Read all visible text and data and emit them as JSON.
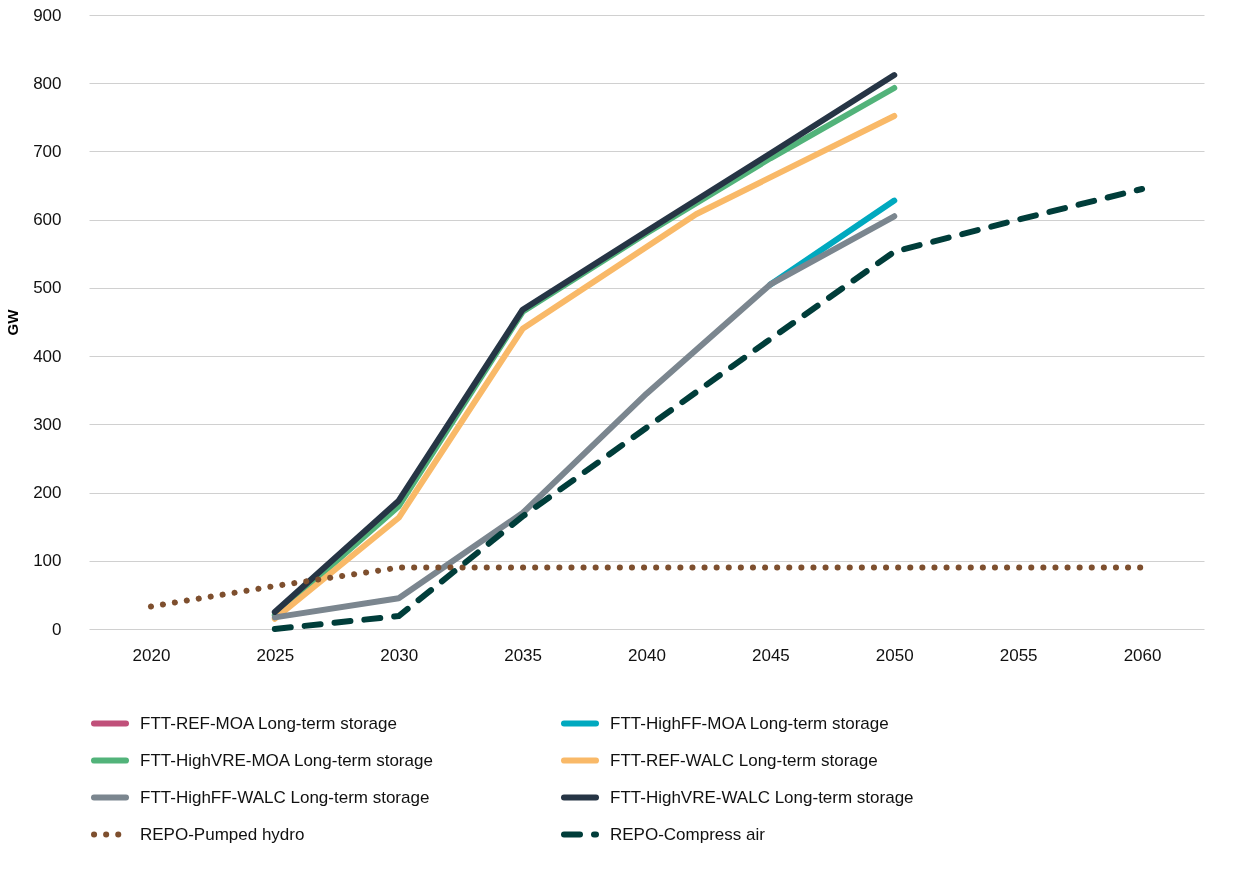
{
  "chart_data": {
    "type": "line",
    "ylabel": "GW",
    "xlim": [
      2017.5,
      2062.5
    ],
    "xticks": [
      2020,
      2025,
      2030,
      2035,
      2040,
      2045,
      2050,
      2055,
      2060
    ],
    "ylim": [
      0,
      900
    ],
    "yticks": [
      0,
      100,
      200,
      300,
      400,
      500,
      600,
      700,
      800,
      900
    ],
    "grid": "y",
    "legend": "bottom",
    "line_style": "solid",
    "series": [
      {
        "name": "FTT-REF-MOA Long-term storage",
        "color": "#c0507a"
      },
      {
        "name": "FTT-HighFF-MOA Long-term storage",
        "color": "#00a9bf",
        "x": [
          2045,
          2050
        ],
        "values": [
          505,
          628
        ]
      },
      {
        "name": "FTT-HighVRE-MOA Long-term storage",
        "color": "#52b37a",
        "x": [
          2025,
          2030,
          2035,
          2040,
          2045,
          2050
        ],
        "values": [
          20,
          180,
          465,
          580,
          690,
          793
        ]
      },
      {
        "name": "FTT-REF-WALC Long-term storage",
        "color": "#f9b968",
        "x": [
          2025,
          2030,
          2035,
          2042,
          2050
        ],
        "values": [
          15,
          163,
          440,
          608,
          752
        ]
      },
      {
        "name": "FTT-HighFF-WALC Long-term storage",
        "color": "#7b868f",
        "x": [
          2025,
          2030,
          2035,
          2040,
          2045,
          2050
        ],
        "values": [
          17,
          45,
          170,
          345,
          505,
          605
        ]
      },
      {
        "name": "FTT-HighVRE-WALC Long-term storage",
        "color": "#263545",
        "x": [
          2025,
          2030,
          2035,
          2040,
          2045,
          2050
        ],
        "values": [
          25,
          188,
          468,
          583,
          697,
          812
        ]
      },
      {
        "name": "REPO-Pumped hydro",
        "color": "#7e4f2e",
        "line_style": "dotted",
        "x": [
          2020,
          2025,
          2030,
          2060
        ],
        "values": [
          33,
          63,
          90,
          90
        ]
      },
      {
        "name": "REPO-Compress air",
        "color": "#003d3a",
        "line_style": "dashed",
        "x": [
          2025,
          2030,
          2035,
          2040,
          2045,
          2050,
          2055,
          2060
        ],
        "values": [
          0,
          19,
          165,
          295,
          425,
          553,
          600,
          645
        ]
      }
    ]
  }
}
